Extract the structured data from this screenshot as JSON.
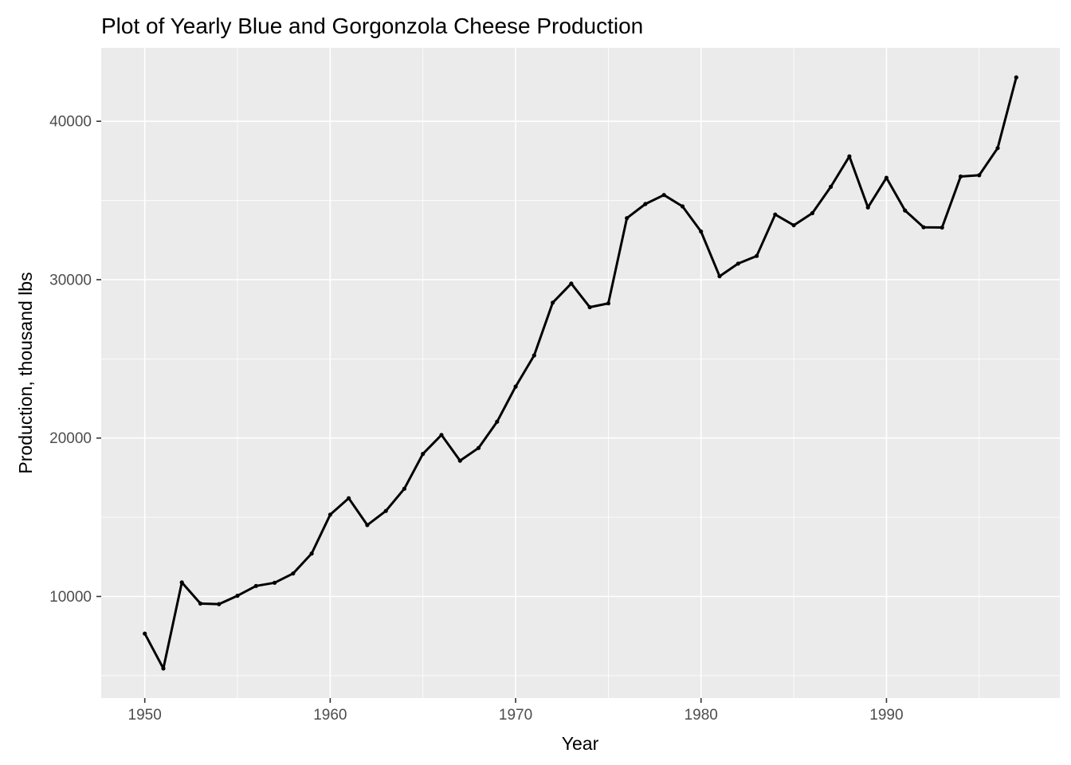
{
  "title": "Plot of Yearly Blue and Gorgonzola Cheese Production",
  "chart_data": {
    "type": "line",
    "title": "Plot of Yearly Blue and Gorgonzola Cheese Production",
    "xlabel": "Year",
    "ylabel": "Production, thousand lbs",
    "series": [
      {
        "name": "production",
        "x": [
          1950,
          1951,
          1952,
          1953,
          1954,
          1955,
          1956,
          1957,
          1958,
          1959,
          1960,
          1961,
          1962,
          1963,
          1964,
          1965,
          1966,
          1967,
          1968,
          1969,
          1970,
          1971,
          1972,
          1973,
          1974,
          1975,
          1976,
          1977,
          1978,
          1979,
          1980,
          1981,
          1982,
          1983,
          1984,
          1985,
          1986,
          1987,
          1988,
          1989,
          1990,
          1991,
          1992,
          1993,
          1994,
          1995,
          1996,
          1997
        ],
        "values": [
          7657,
          5451,
          10883,
          9554,
          9519,
          10047,
          10663,
          10864,
          11447,
          12710,
          15169,
          16205,
          14507,
          15400,
          16800,
          19000,
          20198,
          18573,
          19375,
          21032,
          23250,
          25219,
          28549,
          29759,
          28262,
          28506,
          33885,
          34776,
          35347,
          34628,
          33043,
          30214,
          31013,
          31496,
          34115,
          33433,
          34198,
          35863,
          37789,
          34561,
          36434,
          34371,
          33307,
          33295,
          36514,
          36593,
          38311,
          42773
        ]
      }
    ],
    "xlim": [
      1947.65,
      1999.35
    ],
    "ylim": [
      3585,
      44639
    ],
    "x_major_ticks": [
      1950,
      1960,
      1970,
      1980,
      1990
    ],
    "x_minor_gridlines": [
      1955,
      1965,
      1975,
      1985,
      1995
    ],
    "y_major_ticks": [
      10000,
      20000,
      30000,
      40000
    ],
    "y_minor_gridlines": [
      5000,
      15000,
      25000,
      35000
    ],
    "grid": "major-and-minor",
    "legend": "none",
    "colors": {
      "line": "#000000",
      "point": "#000000",
      "panel_background": "#EBEBEB",
      "gridline": "#FFFFFF",
      "tick_mark": "#333333",
      "tick_label": "#4D4D4D",
      "title_text": "#000000",
      "page_background": "#FFFFFF"
    }
  }
}
